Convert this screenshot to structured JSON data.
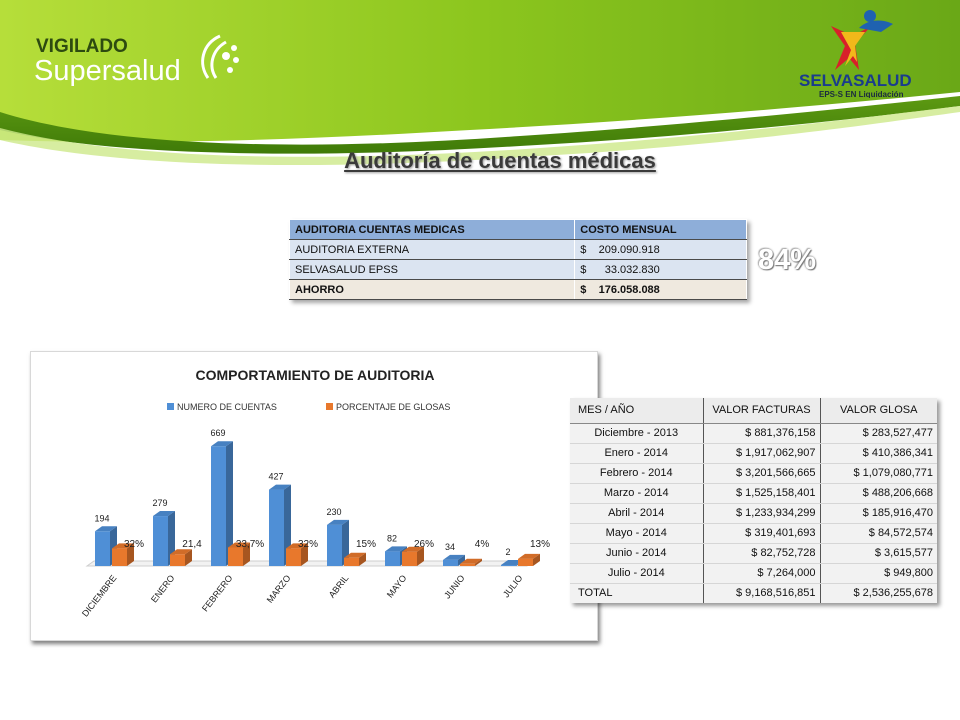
{
  "header": {
    "logo_left_line1": "VIGILADO",
    "logo_left_line2": "Supersalud",
    "logo_right_name": "SELVASALUD",
    "logo_right_tagline": "EPS-S EN Liquidación",
    "title": "Auditoría de cuentas médicas"
  },
  "cost_table": {
    "headers": [
      "AUDITORIA CUENTAS MEDICAS",
      "COSTO MENSUAL"
    ],
    "rows": [
      {
        "label": "AUDITORIA EXTERNA",
        "value": "$    209.090.918"
      },
      {
        "label": "SELVASALUD EPSS",
        "value": "$      33.032.830"
      }
    ],
    "total": {
      "label": "AHORRO",
      "value": "$    176.058.088"
    }
  },
  "savings_percent": "84%",
  "colors": {
    "series1": "#4f8fd6",
    "series2": "#e8782c",
    "banner_green": "#8cc61e",
    "table_header": "#8eaed9"
  },
  "chart_data": {
    "type": "bar",
    "title": "COMPORTAMIENTO DE AUDITORIA",
    "categories": [
      "DICIEMBRE",
      "ENERO",
      "FEBRERO",
      "MARZO",
      "ABRIL",
      "MAYO",
      "JUNIO",
      "JULIO"
    ],
    "series": [
      {
        "name": "NUMERO DE CUENTAS",
        "values": [
          194,
          279,
          669,
          427,
          230,
          82,
          34,
          2
        ],
        "labels": [
          "194",
          "279",
          "669",
          "427",
          "230",
          "82",
          "34",
          "2"
        ]
      },
      {
        "name": "PORCENTAJE DE GLOSAS",
        "values": [
          32,
          21.4,
          33.7,
          32,
          15,
          26,
          4,
          13
        ],
        "labels": [
          "32%",
          "21,4",
          "33,7%",
          "32%",
          "15%",
          "26%",
          "4%",
          "13%"
        ]
      }
    ],
    "legend": "top",
    "grid": false,
    "ylim": [
      0,
      700
    ]
  },
  "invoice_table": {
    "headers": [
      "MES / AÑO",
      "VALOR FACTURAS",
      "VALOR GLOSA"
    ],
    "rows": [
      [
        "Diciembre - 2013",
        "$ 881,376,158",
        "$ 283,527,477"
      ],
      [
        "Enero - 2014",
        "$ 1,917,062,907",
        "$ 410,386,341"
      ],
      [
        "Febrero - 2014",
        "$ 3,201,566,665",
        "$ 1,079,080,771"
      ],
      [
        "Marzo - 2014",
        "$ 1,525,158,401",
        "$ 488,206,668"
      ],
      [
        "Abril - 2014",
        "$ 1,233,934,299",
        "$ 185,916,470"
      ],
      [
        "Mayo - 2014",
        "$ 319,401,693",
        "$ 84,572,574"
      ],
      [
        "Junio - 2014",
        "$ 82,752,728",
        "$ 3,615,577"
      ],
      [
        "Julio - 2014",
        "$ 7,264,000",
        "$ 949,800"
      ]
    ],
    "total": [
      "TOTAL",
      "$ 9,168,516,851",
      "$ 2,536,255,678"
    ]
  }
}
